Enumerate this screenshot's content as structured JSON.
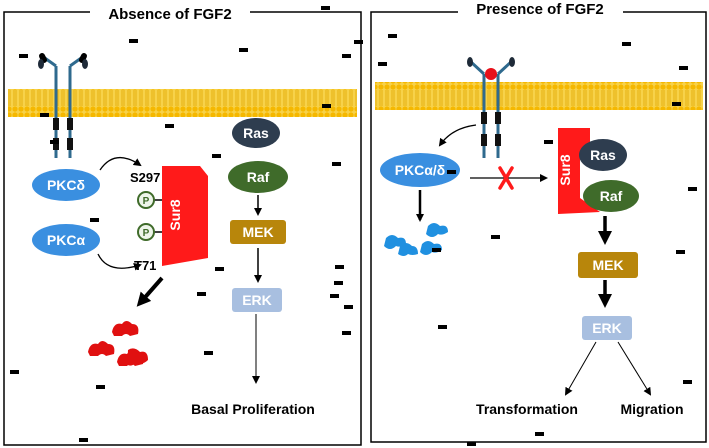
{
  "left_panel": {
    "title": "Absence of FGF2",
    "pkc_delta": "PKCδ",
    "pkc_alpha": "PKCα",
    "site_s297": "S297",
    "site_t71": "T71",
    "phospho_1": "P",
    "phospho_2": "P",
    "sur8": "Sur8",
    "ras": "Ras",
    "raf": "Raf",
    "mek": "MEK",
    "erk": "ERK",
    "outcome": "Basal Proliferation"
  },
  "right_panel": {
    "title": "Presence of FGF2",
    "pkc": "PKCα/δ",
    "sur8": "Sur8",
    "ras": "Ras",
    "raf": "Raf",
    "mek": "MEK",
    "erk": "ERK",
    "outcome_1": "Transformation",
    "outcome_2": "Migration"
  },
  "colors": {
    "membrane": "#f5c842",
    "pkc": "#3a8fe0",
    "sur8": "#ff1a1a",
    "ras": "#2e3d4f",
    "raf": "#3f6b2a",
    "mek": "#b8860b",
    "erk": "#a8bfe0",
    "degraded_left": "#e01010",
    "degraded_right": "#2090e0",
    "ligand": "#e8101a",
    "receptor": "#2f6a8e"
  }
}
